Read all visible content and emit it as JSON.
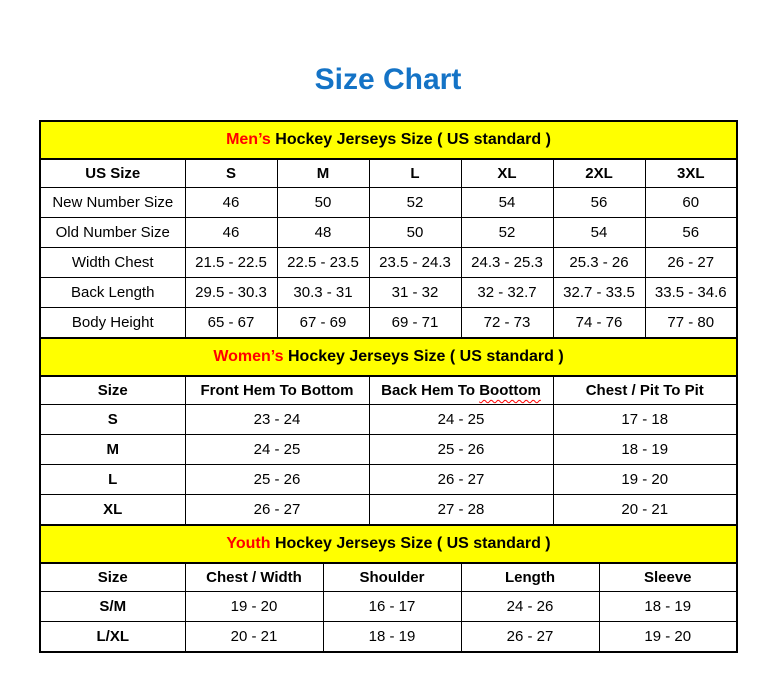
{
  "page": {
    "title": "Size Chart"
  },
  "colors": {
    "title_blue": "#1473c6",
    "banner_yellow": "#ffff00",
    "accent_red": "#ff0000",
    "border_black": "#000000"
  },
  "tables": [
    {
      "id": "mens",
      "banner": {
        "accent": "Men’s",
        "rest": " Hockey Jerseys Size ( US standard )"
      },
      "columns": [
        "US Size",
        "S",
        "M",
        "L",
        "XL",
        "2XL",
        "3XL"
      ],
      "rows": [
        [
          "New Number Size",
          "46",
          "50",
          "52",
          "54",
          "56",
          "60"
        ],
        [
          "Old Number Size",
          "46",
          "48",
          "50",
          "52",
          "54",
          "56"
        ],
        [
          "Width Chest",
          "21.5 - 22.5",
          "22.5 - 23.5",
          "23.5 - 24.3",
          "24.3 - 25.3",
          "25.3 - 26",
          "26 - 27"
        ],
        [
          "Back Length",
          "29.5 - 30.3",
          "30.3 - 31",
          "31 - 32",
          "32 - 32.7",
          "32.7 - 33.5",
          "33.5 - 34.6"
        ],
        [
          "Body Height",
          "65 - 67",
          "67 - 69",
          "69 - 71",
          "72 - 73",
          "74 - 76",
          "77 - 80"
        ]
      ]
    },
    {
      "id": "womens",
      "banner": {
        "accent": "Women’s",
        "rest": " Hockey Jerseys Size ( US standard )"
      },
      "columns": [
        "Size",
        "Front Hem To Bottom",
        {
          "pre": "Back Hem To ",
          "wavy": "Boottom"
        },
        "Chest / Pit To Pit"
      ],
      "rows": [
        [
          "S",
          "23 - 24",
          "24 - 25",
          "17 - 18"
        ],
        [
          "M",
          "24 - 25",
          "25 - 26",
          "18 - 19"
        ],
        [
          "L",
          "25 - 26",
          "26 - 27",
          "19 - 20"
        ],
        [
          "XL",
          "26 - 27",
          "27 - 28",
          "20 - 21"
        ]
      ]
    },
    {
      "id": "youth",
      "banner": {
        "accent": "Youth",
        "rest": " Hockey Jerseys Size ( US standard )"
      },
      "columns": [
        "Size",
        "Chest / Width",
        "Shoulder",
        "Length",
        "Sleeve"
      ],
      "rows": [
        [
          "S/M",
          "19 - 20",
          "16 - 17",
          "24 - 26",
          "18 - 19"
        ],
        [
          "L/XL",
          "20 - 21",
          "18 - 19",
          "26 - 27",
          "19 - 20"
        ]
      ]
    }
  ]
}
